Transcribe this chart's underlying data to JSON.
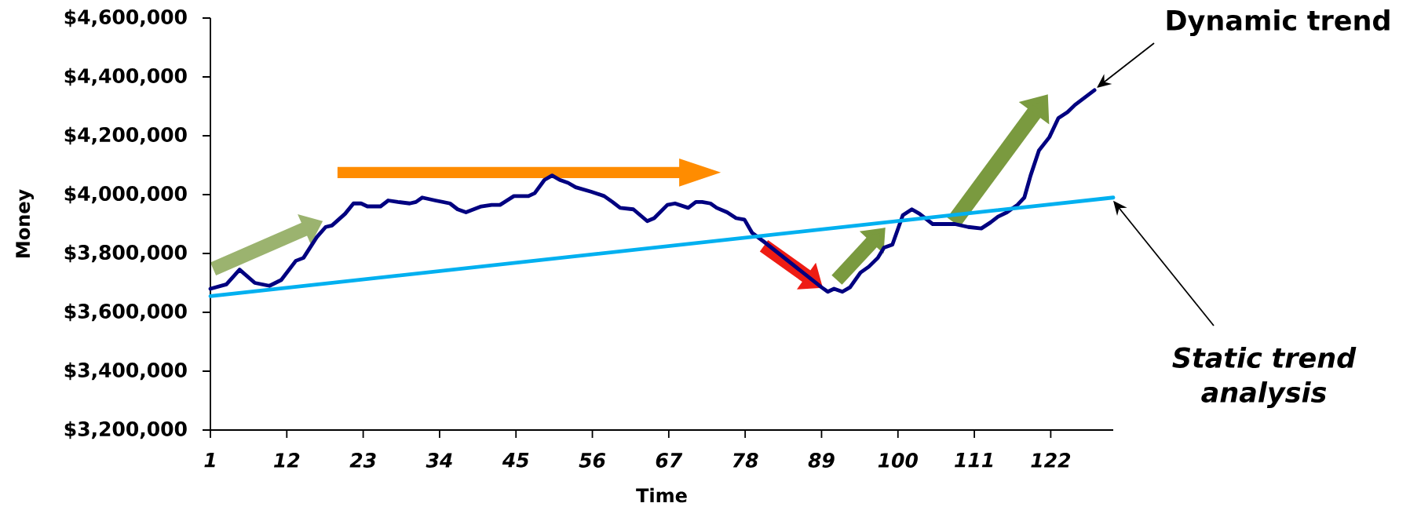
{
  "chart_data": {
    "type": "line",
    "xlabel": "Time",
    "ylabel": "Money",
    "xlim": [
      1,
      131
    ],
    "ylim": [
      3200000,
      4600000
    ],
    "xticks": [
      1,
      12,
      23,
      34,
      45,
      56,
      67,
      78,
      89,
      100,
      111,
      122
    ],
    "yticks": [
      {
        "value": 3200000,
        "label": "$3,200,000"
      },
      {
        "value": 3400000,
        "label": "$3,400,000"
      },
      {
        "value": 3600000,
        "label": "$3,600,000"
      },
      {
        "value": 3800000,
        "label": "$3,800,000"
      },
      {
        "value": 4000000,
        "label": "$4,000,000"
      },
      {
        "value": 4200000,
        "label": "$4,200,000"
      },
      {
        "value": 4400000,
        "label": "$4,400,000"
      },
      {
        "value": 4600000,
        "label": "$4,600,000"
      }
    ],
    "series": [
      {
        "color": "#000080",
        "x": [
          1,
          3.3,
          5.2,
          7.4,
          9.5,
          11.2,
          13.3,
          14.4,
          16.3,
          17.6,
          18.5,
          20.4,
          21.6,
          22.7,
          23.6,
          25.5,
          26.6,
          28,
          29.7,
          30.6,
          31.5,
          33.4,
          35.5,
          36.6,
          37.8,
          40,
          41.5,
          42.7,
          44.7,
          46.8,
          47.7,
          49.1,
          50.2,
          51.3,
          52.5,
          53.6,
          55.8,
          57.7,
          58.9,
          60,
          61.9,
          63.9,
          64.9,
          66.8,
          67.9,
          69.8,
          70.9,
          71.8,
          73,
          73.9,
          75.4,
          76.7,
          77.9,
          79,
          80.7,
          89,
          89.9,
          90.8,
          92,
          93.1,
          94.6,
          95.8,
          97.1,
          98,
          99.2,
          100.7,
          102,
          103.1,
          105,
          108.2,
          110.1,
          112,
          113.3,
          114.4,
          115.7,
          117.2,
          118.2,
          119.1,
          120.3,
          121.8,
          123.1,
          124.4,
          125.5,
          128.3
        ],
        "values": [
          3680000,
          3695000,
          3745000,
          3700000,
          3690000,
          3710000,
          3775000,
          3785000,
          3855000,
          3890000,
          3895000,
          3935000,
          3970000,
          3970000,
          3960000,
          3960000,
          3980000,
          3975000,
          3970000,
          3975000,
          3990000,
          3980000,
          3970000,
          3950000,
          3940000,
          3960000,
          3965000,
          3965000,
          3995000,
          3995000,
          4005000,
          4050000,
          4065000,
          4050000,
          4040000,
          4025000,
          4010000,
          3995000,
          3975000,
          3955000,
          3950000,
          3910000,
          3920000,
          3965000,
          3970000,
          3955000,
          3975000,
          3975000,
          3970000,
          3955000,
          3940000,
          3920000,
          3915000,
          3870000,
          3840000,
          3685000,
          3670000,
          3680000,
          3670000,
          3685000,
          3735000,
          3755000,
          3785000,
          3820000,
          3830000,
          3930000,
          3950000,
          3935000,
          3900000,
          3900000,
          3890000,
          3885000,
          3905000,
          3925000,
          3940000,
          3965000,
          3990000,
          4065000,
          4150000,
          4195000,
          4260000,
          4280000,
          4305000,
          4355000
        ]
      },
      {
        "color": "#00b0f0",
        "x": [
          1,
          131
        ],
        "values": [
          3655000,
          3990000
        ]
      }
    ],
    "annotations": [
      "Dynamic trend",
      "Static trend analysis"
    ]
  }
}
